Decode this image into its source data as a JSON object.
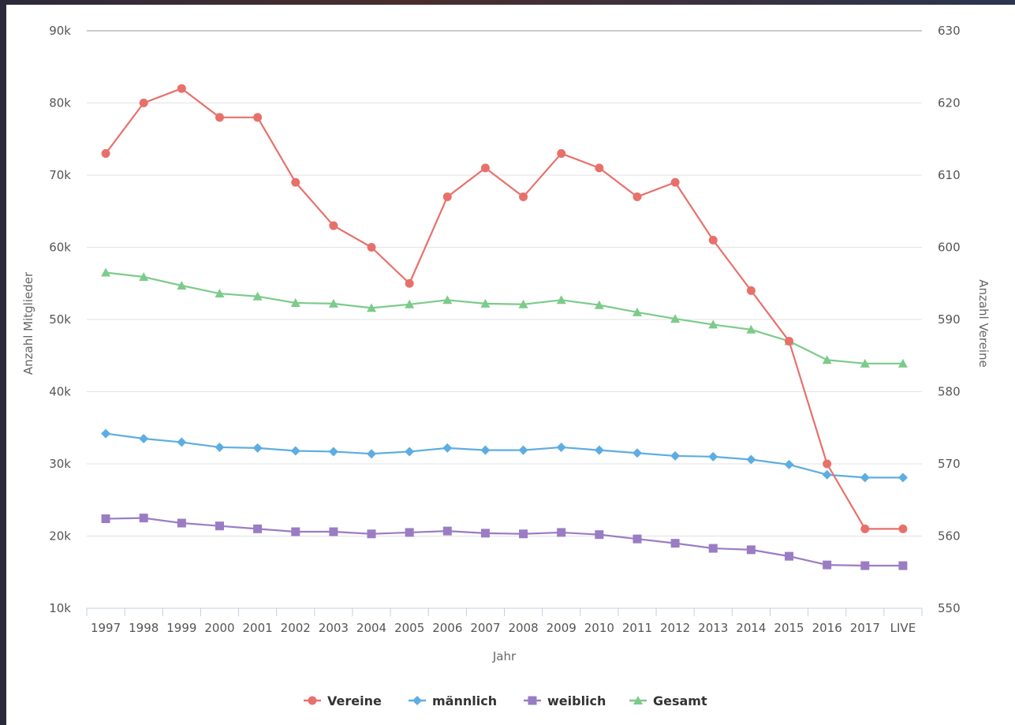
{
  "chart_data": {
    "type": "line",
    "categories": [
      "1997",
      "1998",
      "1999",
      "2000",
      "2001",
      "2002",
      "2003",
      "2004",
      "2005",
      "2006",
      "2007",
      "2008",
      "2009",
      "2010",
      "2011",
      "2012",
      "2013",
      "2014",
      "2015",
      "2016",
      "2017",
      "LIVE"
    ],
    "xlabel": "Jahr",
    "ylabel_left": "Anzahl Mitglieder",
    "ylabel_right": "Anzahl Vereine",
    "ylim_left": [
      10000,
      90000
    ],
    "ylim_right": [
      550,
      630
    ],
    "yticks_left": [
      "10k",
      "20k",
      "30k",
      "40k",
      "50k",
      "60k",
      "70k",
      "80k",
      "90k"
    ],
    "yticks_right": [
      "550",
      "560",
      "570",
      "580",
      "590",
      "600",
      "610",
      "620",
      "630"
    ],
    "grid": true,
    "legend": "bottom-center",
    "series": [
      {
        "name": "Vereine",
        "axis": "right",
        "color": "#e8706b",
        "marker": "circle",
        "values": [
          613,
          620,
          622,
          618,
          618,
          609,
          603,
          600,
          595,
          607,
          611,
          607,
          613,
          611,
          607,
          609,
          601,
          594,
          587,
          570,
          561,
          561
        ]
      },
      {
        "name": "männlich",
        "axis": "left",
        "color": "#5dade2",
        "marker": "diamond",
        "values": [
          34200,
          33500,
          33000,
          32300,
          32200,
          31800,
          31700,
          31400,
          31700,
          32200,
          31900,
          31900,
          32300,
          31900,
          31500,
          31100,
          31000,
          30600,
          29900,
          28500,
          28100,
          28100
        ]
      },
      {
        "name": "weiblich",
        "axis": "left",
        "color": "#9a7cc4",
        "marker": "square",
        "values": [
          22400,
          22500,
          21800,
          21400,
          21000,
          20600,
          20600,
          20300,
          20500,
          20700,
          20400,
          20300,
          20500,
          20200,
          19600,
          19000,
          18300,
          18100,
          17200,
          16000,
          15900,
          15900
        ]
      },
      {
        "name": "Gesamt",
        "axis": "left",
        "color": "#7ccb8a",
        "marker": "triangle",
        "values": [
          56500,
          55900,
          54700,
          53600,
          53200,
          52300,
          52200,
          51600,
          52100,
          52700,
          52200,
          52100,
          52700,
          52000,
          51000,
          50100,
          49300,
          48600,
          47000,
          44400,
          43900,
          43900
        ]
      }
    ]
  }
}
